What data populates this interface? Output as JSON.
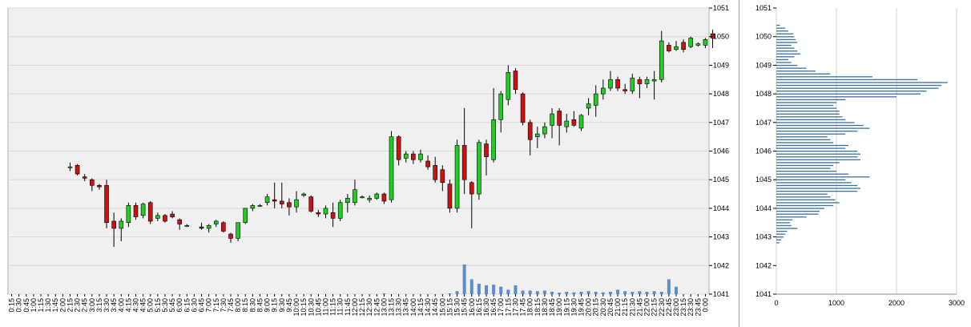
{
  "chart_data": [
    {
      "type": "candlestick",
      "title": "",
      "ylim": [
        1041,
        1051
      ],
      "yticks": [
        1041,
        1042,
        1043,
        1044,
        1045,
        1046,
        1047,
        1048,
        1049,
        1050,
        1051
      ],
      "x_tick_labels": [
        "0:15",
        "0:30",
        "0:45",
        "1:00",
        "1:15",
        "1:30",
        "1:45",
        "2:00",
        "2:15",
        "2:30",
        "2:45",
        "3:00",
        "3:15",
        "3:30",
        "3:45",
        "4:00",
        "4:15",
        "4:30",
        "4:45",
        "5:00",
        "5:15",
        "5:30",
        "5:45",
        "6:00",
        "6:15",
        "6:30",
        "6:45",
        "7:00",
        "7:15",
        "7:30",
        "7:45",
        "8:00",
        "8:15",
        "8:30",
        "8:45",
        "9:00",
        "9:15",
        "9:30",
        "9:45",
        "10:00",
        "10:15",
        "10:30",
        "10:45",
        "11:00",
        "11:15",
        "11:30",
        "11:45",
        "12:00",
        "12:15",
        "12:30",
        "12:45",
        "13:00",
        "13:15",
        "13:30",
        "13:45",
        "14:00",
        "14:15",
        "14:30",
        "14:45",
        "15:00",
        "15:15",
        "15:30",
        "15:45",
        "16:00",
        "16:15",
        "16:30",
        "16:45",
        "17:00",
        "17:15",
        "17:30",
        "17:45",
        "18:00",
        "18:15",
        "18:30",
        "18:45",
        "19:00",
        "19:15",
        "19:30",
        "19:45",
        "20:00",
        "20:15",
        "20:30",
        "20:45",
        "21:00",
        "21:15",
        "21:30",
        "21:45",
        "22:00",
        "22:15",
        "22:30",
        "22:45",
        "23:00",
        "23:15",
        "23:30",
        "23:45",
        "0:00"
      ],
      "candles": [
        {
          "time": "2:15",
          "open": 1045.45,
          "high": 1045.6,
          "low": 1045.3,
          "close": 1045.45
        },
        {
          "time": "2:30",
          "open": 1045.5,
          "high": 1045.55,
          "low": 1045.15,
          "close": 1045.2
        },
        {
          "time": "2:45",
          "open": 1045.1,
          "high": 1045.2,
          "low": 1044.95,
          "close": 1045.05
        },
        {
          "time": "3:00",
          "open": 1045.0,
          "high": 1045.05,
          "low": 1044.6,
          "close": 1044.8
        },
        {
          "time": "3:15",
          "open": 1044.8,
          "high": 1044.85,
          "low": 1044.65,
          "close": 1044.75
        },
        {
          "time": "3:30",
          "open": 1044.8,
          "high": 1045.0,
          "low": 1043.3,
          "close": 1043.5
        },
        {
          "time": "3:45",
          "open": 1043.55,
          "high": 1043.85,
          "low": 1042.65,
          "close": 1043.3
        },
        {
          "time": "4:00",
          "open": 1043.3,
          "high": 1043.65,
          "low": 1042.85,
          "close": 1043.55
        },
        {
          "time": "4:15",
          "open": 1043.5,
          "high": 1044.2,
          "low": 1043.35,
          "close": 1044.1
        },
        {
          "time": "4:30",
          "open": 1044.1,
          "high": 1044.2,
          "low": 1043.6,
          "close": 1043.7
        },
        {
          "time": "4:45",
          "open": 1043.75,
          "high": 1044.2,
          "low": 1043.65,
          "close": 1044.15
        },
        {
          "time": "5:00",
          "open": 1044.2,
          "high": 1044.25,
          "low": 1043.45,
          "close": 1043.55
        },
        {
          "time": "5:15",
          "open": 1043.65,
          "high": 1043.85,
          "low": 1043.55,
          "close": 1043.75
        },
        {
          "time": "5:30",
          "open": 1043.75,
          "high": 1043.8,
          "low": 1043.5,
          "close": 1043.55
        },
        {
          "time": "5:45",
          "open": 1043.8,
          "high": 1043.9,
          "low": 1043.65,
          "close": 1043.7
        },
        {
          "time": "6:00",
          "open": 1043.6,
          "high": 1043.65,
          "low": 1043.25,
          "close": 1043.45
        },
        {
          "time": "6:15",
          "open": 1043.4,
          "high": 1043.45,
          "low": 1043.35,
          "close": 1043.4
        },
        {
          "time": "6:45",
          "open": 1043.35,
          "high": 1043.5,
          "low": 1043.25,
          "close": 1043.3
        },
        {
          "time": "7:00",
          "open": 1043.3,
          "high": 1043.45,
          "low": 1043.15,
          "close": 1043.4
        },
        {
          "time": "7:15",
          "open": 1043.45,
          "high": 1043.6,
          "low": 1043.35,
          "close": 1043.55
        },
        {
          "time": "7:30",
          "open": 1043.5,
          "high": 1043.55,
          "low": 1043.15,
          "close": 1043.2
        },
        {
          "time": "7:45",
          "open": 1043.1,
          "high": 1043.15,
          "low": 1042.8,
          "close": 1042.95
        },
        {
          "time": "8:00",
          "open": 1042.95,
          "high": 1043.5,
          "low": 1042.85,
          "close": 1043.5
        },
        {
          "time": "8:15",
          "open": 1043.5,
          "high": 1044.0,
          "low": 1043.45,
          "close": 1044.0
        },
        {
          "time": "8:30",
          "open": 1044.0,
          "high": 1044.15,
          "low": 1043.9,
          "close": 1044.1
        },
        {
          "time": "8:45",
          "open": 1044.1,
          "high": 1044.15,
          "low": 1044.05,
          "close": 1044.1
        },
        {
          "time": "9:00",
          "open": 1044.2,
          "high": 1044.5,
          "low": 1044.1,
          "close": 1044.4
        },
        {
          "time": "9:15",
          "open": 1044.3,
          "high": 1044.9,
          "low": 1044.0,
          "close": 1044.25
        },
        {
          "time": "9:30",
          "open": 1044.25,
          "high": 1044.9,
          "low": 1044.0,
          "close": 1044.15
        },
        {
          "time": "9:45",
          "open": 1044.2,
          "high": 1044.35,
          "low": 1043.75,
          "close": 1044.05
        },
        {
          "time": "10:00",
          "open": 1044.05,
          "high": 1044.6,
          "low": 1043.85,
          "close": 1044.3
        },
        {
          "time": "10:15",
          "open": 1044.45,
          "high": 1044.55,
          "low": 1044.4,
          "close": 1044.5
        },
        {
          "time": "10:30",
          "open": 1044.4,
          "high": 1044.45,
          "low": 1043.85,
          "close": 1043.9
        },
        {
          "time": "10:45",
          "open": 1043.85,
          "high": 1043.95,
          "low": 1043.7,
          "close": 1043.8
        },
        {
          "time": "11:00",
          "open": 1043.8,
          "high": 1044.1,
          "low": 1043.65,
          "close": 1044.0
        },
        {
          "time": "11:15",
          "open": 1043.85,
          "high": 1044.2,
          "low": 1043.35,
          "close": 1043.65
        },
        {
          "time": "11:30",
          "open": 1043.65,
          "high": 1044.3,
          "low": 1043.55,
          "close": 1044.2
        },
        {
          "time": "11:45",
          "open": 1044.2,
          "high": 1044.5,
          "low": 1043.85,
          "close": 1044.35
        },
        {
          "time": "12:00",
          "open": 1044.2,
          "high": 1045.0,
          "low": 1044.1,
          "close": 1044.65
        },
        {
          "time": "12:15",
          "open": 1044.4,
          "high": 1044.45,
          "low": 1044.35,
          "close": 1044.4
        },
        {
          "time": "12:30",
          "open": 1044.3,
          "high": 1044.45,
          "low": 1044.2,
          "close": 1044.35
        },
        {
          "time": "12:45",
          "open": 1044.35,
          "high": 1044.55,
          "low": 1044.3,
          "close": 1044.5
        },
        {
          "time": "13:00",
          "open": 1044.5,
          "high": 1044.55,
          "low": 1044.15,
          "close": 1044.25
        },
        {
          "time": "13:15",
          "open": 1044.3,
          "high": 1046.7,
          "low": 1044.2,
          "close": 1046.5
        },
        {
          "time": "13:30",
          "open": 1046.5,
          "high": 1046.55,
          "low": 1045.5,
          "close": 1045.7
        },
        {
          "time": "13:45",
          "open": 1045.75,
          "high": 1046.0,
          "low": 1045.6,
          "close": 1045.9
        },
        {
          "time": "14:00",
          "open": 1045.9,
          "high": 1046.0,
          "low": 1045.55,
          "close": 1045.7
        },
        {
          "time": "14:15",
          "open": 1045.7,
          "high": 1046.05,
          "low": 1045.6,
          "close": 1045.9
        },
        {
          "time": "14:30",
          "open": 1045.65,
          "high": 1045.85,
          "low": 1045.35,
          "close": 1045.45
        },
        {
          "time": "14:45",
          "open": 1045.5,
          "high": 1045.8,
          "low": 1044.9,
          "close": 1045.0
        },
        {
          "time": "15:00",
          "open": 1045.35,
          "high": 1045.5,
          "low": 1044.6,
          "close": 1044.9
        },
        {
          "time": "15:15",
          "open": 1044.85,
          "high": 1045.0,
          "low": 1043.85,
          "close": 1044.0
        },
        {
          "time": "15:30",
          "open": 1044.0,
          "high": 1046.4,
          "low": 1043.85,
          "close": 1046.2
        },
        {
          "time": "15:45",
          "open": 1046.2,
          "high": 1047.5,
          "low": 1044.5,
          "close": 1045.0
        },
        {
          "time": "16:00",
          "open": 1044.9,
          "high": 1044.95,
          "low": 1043.3,
          "close": 1044.5
        },
        {
          "time": "16:15",
          "open": 1044.5,
          "high": 1046.4,
          "low": 1044.3,
          "close": 1046.3
        },
        {
          "time": "16:30",
          "open": 1046.25,
          "high": 1046.4,
          "low": 1045.15,
          "close": 1045.8
        },
        {
          "time": "16:45",
          "open": 1045.7,
          "high": 1048.2,
          "low": 1045.6,
          "close": 1047.1
        },
        {
          "time": "17:00",
          "open": 1047.1,
          "high": 1048.1,
          "low": 1046.65,
          "close": 1048.0
        },
        {
          "time": "17:15",
          "open": 1047.8,
          "high": 1049.0,
          "low": 1047.6,
          "close": 1048.75
        },
        {
          "time": "17:30",
          "open": 1048.8,
          "high": 1048.9,
          "low": 1048.0,
          "close": 1048.15
        },
        {
          "time": "17:45",
          "open": 1048.0,
          "high": 1048.05,
          "low": 1046.9,
          "close": 1047.0
        },
        {
          "time": "18:00",
          "open": 1047.0,
          "high": 1047.1,
          "low": 1045.85,
          "close": 1046.4
        },
        {
          "time": "18:15",
          "open": 1046.5,
          "high": 1046.85,
          "low": 1046.1,
          "close": 1046.6
        },
        {
          "time": "18:30",
          "open": 1046.6,
          "high": 1047.0,
          "low": 1046.45,
          "close": 1046.85
        },
        {
          "time": "18:45",
          "open": 1046.9,
          "high": 1047.5,
          "low": 1046.45,
          "close": 1047.3
        },
        {
          "time": "19:00",
          "open": 1047.4,
          "high": 1047.5,
          "low": 1046.2,
          "close": 1046.9
        },
        {
          "time": "19:15",
          "open": 1046.85,
          "high": 1047.3,
          "low": 1046.65,
          "close": 1047.05
        },
        {
          "time": "19:30",
          "open": 1047.1,
          "high": 1047.4,
          "low": 1046.85,
          "close": 1046.9
        },
        {
          "time": "19:45",
          "open": 1046.8,
          "high": 1047.3,
          "low": 1046.7,
          "close": 1047.25
        },
        {
          "time": "20:00",
          "open": 1047.5,
          "high": 1047.85,
          "low": 1047.25,
          "close": 1047.65
        },
        {
          "time": "20:15",
          "open": 1047.6,
          "high": 1048.3,
          "low": 1047.2,
          "close": 1048.0
        },
        {
          "time": "20:30",
          "open": 1048.0,
          "high": 1048.5,
          "low": 1047.8,
          "close": 1048.2
        },
        {
          "time": "20:45",
          "open": 1048.2,
          "high": 1048.8,
          "low": 1048.1,
          "close": 1048.5
        },
        {
          "time": "21:00",
          "open": 1048.5,
          "high": 1048.6,
          "low": 1048.1,
          "close": 1048.2
        },
        {
          "time": "21:15",
          "open": 1048.15,
          "high": 1048.35,
          "low": 1048.0,
          "close": 1048.1
        },
        {
          "time": "21:30",
          "open": 1048.1,
          "high": 1048.7,
          "low": 1048.0,
          "close": 1048.55
        },
        {
          "time": "21:45",
          "open": 1048.5,
          "high": 1048.6,
          "low": 1047.85,
          "close": 1048.35
        },
        {
          "time": "22:00",
          "open": 1048.35,
          "high": 1048.6,
          "low": 1048.2,
          "close": 1048.5
        },
        {
          "time": "22:15",
          "open": 1048.45,
          "high": 1048.8,
          "low": 1047.8,
          "close": 1048.5
        },
        {
          "time": "22:30",
          "open": 1048.5,
          "high": 1050.2,
          "low": 1048.4,
          "close": 1049.85
        },
        {
          "time": "22:45",
          "open": 1049.7,
          "high": 1049.8,
          "low": 1049.45,
          "close": 1049.5
        },
        {
          "time": "23:00",
          "open": 1049.55,
          "high": 1049.85,
          "low": 1049.5,
          "close": 1049.65
        },
        {
          "time": "23:15",
          "open": 1049.8,
          "high": 1049.9,
          "low": 1049.45,
          "close": 1049.55
        },
        {
          "time": "23:30",
          "open": 1049.65,
          "high": 1050.0,
          "low": 1049.6,
          "close": 1049.95
        },
        {
          "time": "23:45",
          "open": 1049.7,
          "high": 1049.8,
          "low": 1049.65,
          "close": 1049.75
        },
        {
          "time": "0:00",
          "open": 1049.7,
          "high": 1049.95,
          "low": 1049.6,
          "close": 1049.9
        },
        {
          "time": "0:15",
          "open": 1050.1,
          "high": 1050.25,
          "low": 1049.6,
          "close": 1049.95
        }
      ],
      "volume": [
        {
          "time": "13:00",
          "value": 0.02
        },
        {
          "time": "15:15",
          "value": 0.02
        },
        {
          "time": "15:30",
          "value": 0.1
        },
        {
          "time": "15:45",
          "value": 1.0
        },
        {
          "time": "16:00",
          "value": 0.5
        },
        {
          "time": "16:15",
          "value": 0.35
        },
        {
          "time": "16:30",
          "value": 0.3
        },
        {
          "time": "16:45",
          "value": 0.32
        },
        {
          "time": "17:00",
          "value": 0.25
        },
        {
          "time": "17:15",
          "value": 0.15
        },
        {
          "time": "17:30",
          "value": 0.3
        },
        {
          "time": "17:45",
          "value": 0.12
        },
        {
          "time": "18:00",
          "value": 0.12
        },
        {
          "time": "18:15",
          "value": 0.1
        },
        {
          "time": "18:30",
          "value": 0.12
        },
        {
          "time": "18:45",
          "value": 0.08
        },
        {
          "time": "19:00",
          "value": 0.05
        },
        {
          "time": "19:15",
          "value": 0.08
        },
        {
          "time": "19:30",
          "value": 0.06
        },
        {
          "time": "19:45",
          "value": 0.08
        },
        {
          "time": "20:00",
          "value": 0.1
        },
        {
          "time": "20:15",
          "value": 0.08
        },
        {
          "time": "20:30",
          "value": 0.06
        },
        {
          "time": "20:45",
          "value": 0.08
        },
        {
          "time": "21:00",
          "value": 0.15
        },
        {
          "time": "21:15",
          "value": 0.1
        },
        {
          "time": "21:30",
          "value": 0.08
        },
        {
          "time": "21:45",
          "value": 0.1
        },
        {
          "time": "22:00",
          "value": 0.08
        },
        {
          "time": "22:15",
          "value": 0.1
        },
        {
          "time": "22:30",
          "value": 0.08
        },
        {
          "time": "22:45",
          "value": 0.5
        },
        {
          "time": "23:00",
          "value": 0.25
        }
      ],
      "colors": {
        "up": "#22cc22",
        "down": "#cc1111",
        "wick": "#000000",
        "volume": "#5b8dc9",
        "plot_bg": "#f0f0f0",
        "grid": "#d8d8d8"
      }
    },
    {
      "type": "bar",
      "orientation": "horizontal",
      "ylim": [
        1041,
        1051
      ],
      "xlim": [
        0,
        3000
      ],
      "yticks": [
        1041,
        1042,
        1043,
        1044,
        1045,
        1046,
        1047,
        1048,
        1049,
        1050,
        1051
      ],
      "xticks": [
        0,
        1000,
        2000,
        3000
      ],
      "price_levels_step": 0.1,
      "price_start": 1042.8,
      "values": [
        50,
        80,
        120,
        150,
        180,
        350,
        250,
        230,
        270,
        500,
        700,
        720,
        800,
        950,
        1050,
        980,
        900,
        850,
        1350,
        1400,
        1350,
        1250,
        1150,
        1550,
        1200,
        1000,
        900,
        950,
        1050,
        1400,
        1350,
        1400,
        1350,
        1150,
        1200,
        950,
        900,
        850,
        1150,
        1350,
        1550,
        1450,
        1300,
        1150,
        1100,
        1050,
        1050,
        1000,
        950,
        1000,
        1150,
        2000,
        2400,
        2500,
        2700,
        2750,
        2850,
        2350,
        1600,
        900,
        650,
        500,
        350,
        250,
        200,
        300,
        400,
        350,
        300,
        250,
        350,
        320,
        300,
        280,
        200,
        150,
        60
      ],
      "colors": {
        "bar": "#3e6f99",
        "grid": "#d0d0d0"
      }
    }
  ]
}
